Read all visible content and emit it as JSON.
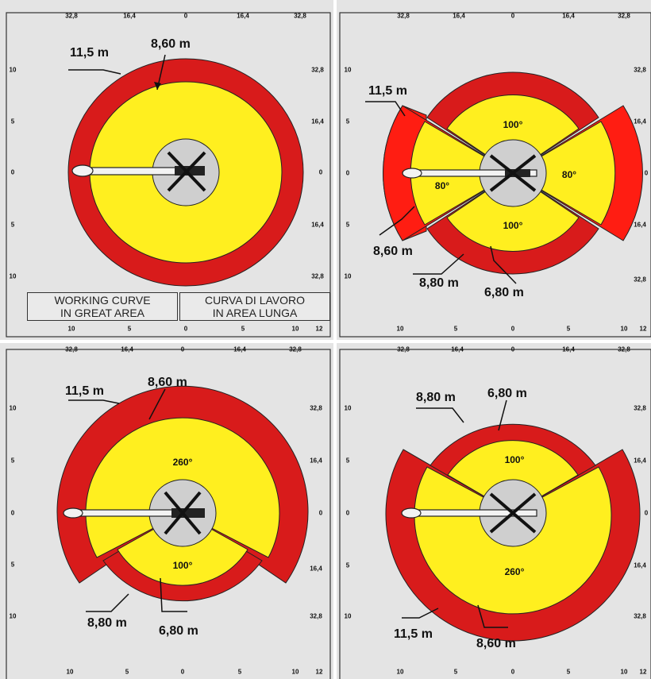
{
  "colors": {
    "outer": "#d81b1b",
    "inner": "#ffef1f",
    "center": "#cfcfcf",
    "panel": "#e4e4e4"
  },
  "panels": [
    {
      "id": "great-area",
      "labels": {
        "outer_radius": "11,5 m",
        "inner_radius": "8,60 m"
      },
      "caption_en": [
        "WORKING CURVE",
        "IN GREAT AREA"
      ],
      "caption_it": [
        "CURVA DI LAVORO",
        "IN AREA LUNGA"
      ],
      "top_ticks": [
        "32,8",
        "16,4",
        "0",
        "16,4",
        "32,8"
      ],
      "left_ticks": [
        "10",
        "5",
        "0",
        "5",
        "10"
      ],
      "right_ticks": [
        "32,8",
        "16,4",
        "0",
        "16,4",
        "32,8"
      ],
      "bottom_ticks": [
        "10",
        "5",
        "0",
        "5",
        "10",
        "12"
      ]
    },
    {
      "id": "sectors-80",
      "labels": {
        "r1": "11,5 m",
        "r2": "8,60 m",
        "r3": "8,80 m",
        "r4": "6,80 m",
        "a_top": "100°",
        "a_bottom": "100°",
        "a_left": "80°",
        "a_right": "80°"
      },
      "top_ticks": [
        "32,8",
        "16,4",
        "0",
        "16,4",
        "32,8"
      ],
      "left_ticks": [
        "10",
        "5",
        "0",
        "5",
        "10"
      ],
      "right_ticks": [
        "32,8",
        "16,4",
        "0",
        "16,4",
        "32,8"
      ],
      "bottom_ticks": [
        "10",
        "5",
        "0",
        "5",
        "10",
        "12"
      ]
    },
    {
      "id": "sector-260-top",
      "labels": {
        "r1": "11,5 m",
        "r2": "8,60 m",
        "r3": "8,80 m",
        "r4": "6,80 m",
        "a_big": "260°",
        "a_small": "100°"
      },
      "top_ticks": [
        "32,8",
        "16,4",
        "0",
        "16,4",
        "32,8"
      ],
      "left_ticks": [
        "10",
        "5",
        "0",
        "5",
        "10"
      ],
      "right_ticks": [
        "32,8",
        "16,4",
        "0",
        "16,4",
        "32,8"
      ],
      "bottom_ticks": [
        "10",
        "5",
        "0",
        "5",
        "10",
        "12"
      ]
    },
    {
      "id": "sector-260-bottom",
      "labels": {
        "r1": "8,80 m",
        "r2": "6,80 m",
        "r3": "11,5 m",
        "r4": "8,60 m",
        "a_small": "100°",
        "a_big": "260°"
      },
      "top_ticks": [
        "32,8",
        "16,4",
        "0",
        "16,4",
        "32,8"
      ],
      "left_ticks": [
        "10",
        "5",
        "0",
        "5",
        "10"
      ],
      "right_ticks": [
        "32,8",
        "16,4",
        "0",
        "16,4",
        "32,8"
      ],
      "bottom_ticks": [
        "10",
        "5",
        "0",
        "5",
        "10",
        "12"
      ]
    }
  ]
}
